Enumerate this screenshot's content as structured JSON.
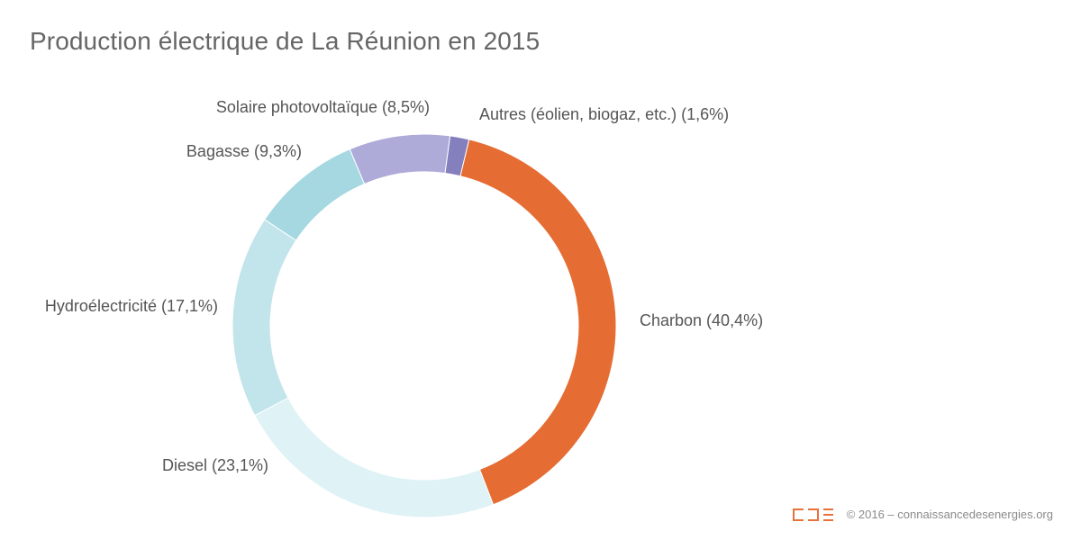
{
  "title": "Production électrique de La Réunion en 2015",
  "footer": {
    "credit": "© 2016 – connaissancedesenergies.org",
    "logo_color": "#e8733a"
  },
  "chart_data": {
    "type": "pie",
    "style": "donut",
    "title": "Production électrique de La Réunion en 2015",
    "slices": [
      {
        "label": "Charbon (40,4%)",
        "name": "Charbon",
        "value": 40.4,
        "color": "#e56c32"
      },
      {
        "label": "Diesel (23,1%)",
        "name": "Diesel",
        "value": 23.1,
        "color": "#dff2f6"
      },
      {
        "label": "Hydroélectricité (17,1%)",
        "name": "Hydroélectricité",
        "value": 17.1,
        "color": "#c2e4eb"
      },
      {
        "label": "Bagasse (9,3%)",
        "name": "Bagasse",
        "value": 9.3,
        "color": "#a6d8e2"
      },
      {
        "label": "Solaire photovoltaïque (8,5%)",
        "name": "Solaire photovoltaïque",
        "value": 8.5,
        "color": "#aeabd8"
      },
      {
        "label": "Autres (éolien, biogaz, etc.) (1,6%)",
        "name": "Autres (éolien, biogaz, etc.)",
        "value": 1.6,
        "color": "#847fbd"
      }
    ]
  }
}
